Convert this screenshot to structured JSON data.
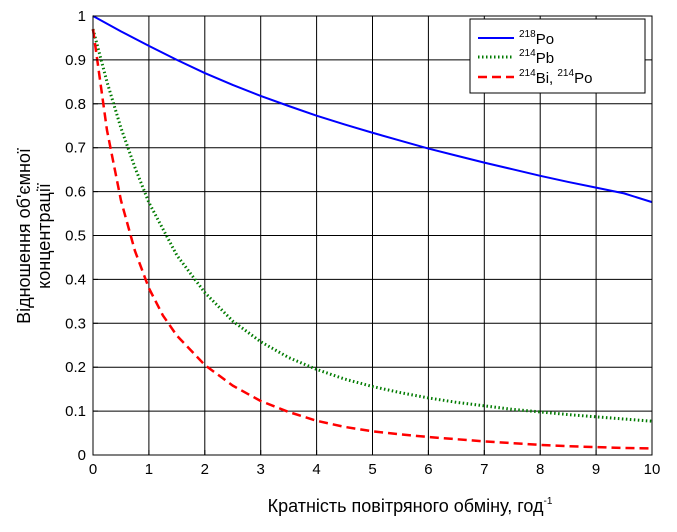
{
  "chart_data": {
    "type": "line",
    "xlabel": "Кратність повітряного обміну, год",
    "xlabel_sup": "-1",
    "ylabel_line1": "Відношення об'ємної",
    "ylabel_line2": "концентрації",
    "xlim": [
      0,
      10
    ],
    "ylim": [
      0,
      1
    ],
    "x_ticks": [
      "0",
      "1",
      "2",
      "3",
      "4",
      "5",
      "6",
      "7",
      "8",
      "9",
      "10"
    ],
    "y_ticks": [
      "0",
      "0.1",
      "0.2",
      "0.3",
      "0.4",
      "0.5",
      "0.6",
      "0.7",
      "0.8",
      "0.9",
      "1"
    ],
    "grid": true,
    "legend_position": "top-right",
    "series": [
      {
        "name_sup": "218",
        "name": "Po",
        "color": "#0000ff",
        "style": "solid",
        "x": [
          0,
          0.5,
          1,
          1.5,
          2,
          2.5,
          3,
          3.5,
          4,
          4.5,
          5,
          5.5,
          6,
          6.5,
          7,
          7.5,
          8,
          8.5,
          9,
          9.5,
          10
        ],
        "y": [
          1.0,
          0.965,
          0.932,
          0.9,
          0.87,
          0.843,
          0.818,
          0.795,
          0.773,
          0.753,
          0.734,
          0.716,
          0.698,
          0.682,
          0.666,
          0.651,
          0.636,
          0.622,
          0.609,
          0.596,
          0.576
        ]
      },
      {
        "name_sup": "214",
        "name": "Pb",
        "color": "#007a00",
        "style": "dotted",
        "x": [
          0,
          0.25,
          0.5,
          0.75,
          1,
          1.5,
          2,
          2.5,
          3,
          3.5,
          4,
          4.5,
          5,
          5.5,
          6,
          6.5,
          7,
          7.5,
          8,
          8.5,
          9,
          9.5,
          10
        ],
        "y": [
          0.97,
          0.85,
          0.745,
          0.655,
          0.575,
          0.455,
          0.37,
          0.305,
          0.258,
          0.222,
          0.195,
          0.173,
          0.156,
          0.142,
          0.13,
          0.12,
          0.112,
          0.104,
          0.098,
          0.092,
          0.087,
          0.082,
          0.077
        ]
      },
      {
        "name_sup": "214",
        "name": "Bi, ",
        "name_sup2": "214",
        "name2": "Po",
        "color": "#ff0000",
        "style": "dashed",
        "x": [
          0,
          0.25,
          0.5,
          0.75,
          1,
          1.25,
          1.5,
          2,
          2.5,
          3,
          3.5,
          4,
          4.5,
          5,
          5.5,
          6,
          6.5,
          7,
          7.5,
          8,
          8.5,
          9,
          9.5,
          10
        ],
        "y": [
          0.97,
          0.74,
          0.58,
          0.465,
          0.38,
          0.318,
          0.272,
          0.205,
          0.158,
          0.123,
          0.098,
          0.078,
          0.064,
          0.054,
          0.047,
          0.041,
          0.036,
          0.031,
          0.027,
          0.023,
          0.02,
          0.018,
          0.016,
          0.015
        ]
      }
    ]
  }
}
